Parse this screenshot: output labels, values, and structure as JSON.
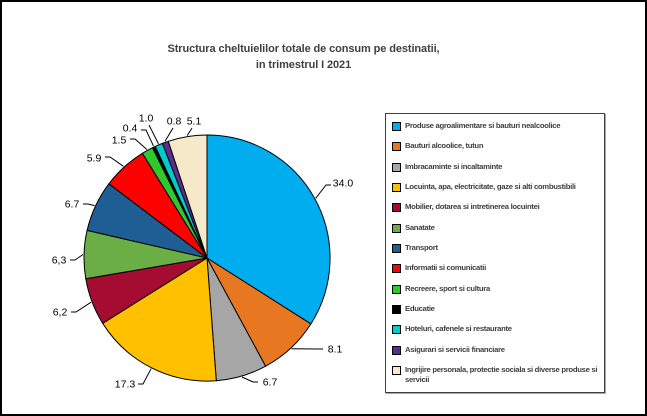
{
  "chart_data": {
    "type": "pie",
    "title": "Structura cheltuielilor totale de consum pe destinatii, in trimestrul I 2021",
    "title_lines": [
      "Structura cheltuielilor totale de consum pe destinatii,",
      "in trimestrul I 2021"
    ],
    "legend_position": "right",
    "start_angle_deg": 0,
    "direction": "clockwise",
    "total": 100.0,
    "slices": [
      {
        "label": "Produse agroalimentare si bauturi nealcoolice",
        "value": 34.0,
        "display": "34.0",
        "color": "#00AEEF"
      },
      {
        "label": "Bauturi alcoolice, tutun",
        "value": 8.1,
        "display": "8.1",
        "color": "#E87722"
      },
      {
        "label": "Imbracaminte si incaltaminte",
        "value": 6.7,
        "display": "6.7",
        "color": "#A6A6A6"
      },
      {
        "label": "Locuinta, apa, electricitate, gaze si alti combustibili",
        "value": 17.3,
        "display": "17.3",
        "color": "#FFC000"
      },
      {
        "label": "Mobilier, dotarea si intretinerea locuintei",
        "value": 6.2,
        "display": "6,2",
        "color": "#A40C32"
      },
      {
        "label": "Sanatate",
        "value": 6.3,
        "display": "6,3",
        "color": "#6AAE45"
      },
      {
        "label": "Transport",
        "value": 6.7,
        "display": "6.7",
        "color": "#1F5E94"
      },
      {
        "label": "Informatii si comunicatii",
        "value": 5.9,
        "display": "5.9",
        "color": "#FE0000"
      },
      {
        "label": "Recreere, sport si cultura",
        "value": 1.5,
        "display": "1.5",
        "color": "#2DC92D"
      },
      {
        "label": "Educatie",
        "value": 0.4,
        "display": "0.4",
        "color": "#000000"
      },
      {
        "label": "Hoteluri, cafenele si restaurante",
        "value": 1.0,
        "display": "1.0",
        "color": "#00CCCC"
      },
      {
        "label": "Asigurari si servicii financiare",
        "value": 0.8,
        "display": "0.8",
        "color": "#5B2D90"
      },
      {
        "label": "Ingrijire personala, protectie sociala si diverse produse si servicii",
        "value": 5.1,
        "display": "5.1",
        "color": "#F5E9C9"
      }
    ]
  }
}
